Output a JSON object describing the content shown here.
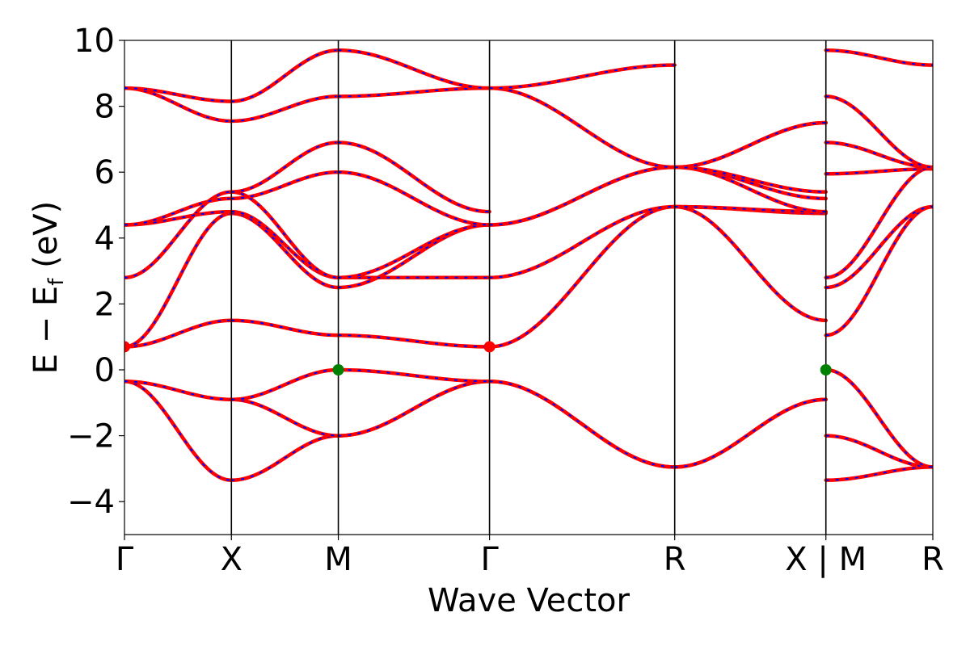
{
  "chart_data": {
    "type": "line",
    "xlabel": "Wave Vector",
    "ylabel_parts": [
      "E − E",
      "f",
      " (eV)"
    ],
    "ylim": [
      -5,
      10
    ],
    "yticks": [
      -4,
      -2,
      0,
      2,
      4,
      6,
      8,
      10
    ],
    "ytick_labels": [
      "−4",
      "−2",
      "0",
      "2",
      "4",
      "6",
      "8",
      "10"
    ],
    "x_range": [
      0,
      7.5
    ],
    "kpoints": [
      {
        "x": 0,
        "label": "Γ"
      },
      {
        "x": 1,
        "label": "X"
      },
      {
        "x": 2,
        "label": "M"
      },
      {
        "x": 3.414,
        "label": "Γ"
      },
      {
        "x": 5.146,
        "label": "R"
      },
      {
        "x": 6.56,
        "label": "X | M"
      },
      {
        "x": 7.56,
        "label": "R"
      }
    ],
    "colors": {
      "band_main": "#ff0000",
      "band_dash": "#0000ff",
      "cbm_marker": "#ff0000",
      "vbm_marker": "#008000"
    },
    "markers": [
      {
        "type": "cbm",
        "x": 0,
        "y": 0.7
      },
      {
        "type": "cbm",
        "x": 3.414,
        "y": 0.7
      },
      {
        "type": "vbm",
        "x": 2,
        "y": 0.0
      },
      {
        "type": "vbm",
        "x": 6.56,
        "y": 0.0
      }
    ],
    "segments": [
      {
        "from": "Γ",
        "to": "X",
        "bands": [
          [
            -0.35,
            -3.35
          ],
          [
            -0.35,
            -0.9
          ],
          [
            0.7,
            1.5
          ],
          [
            0.7,
            4.75
          ],
          [
            2.8,
            5.4
          ],
          [
            4.4,
            4.8
          ],
          [
            4.4,
            5.2
          ],
          [
            8.55,
            7.55
          ],
          [
            8.55,
            8.15
          ]
        ]
      },
      {
        "from": "X",
        "to": "M",
        "bands": [
          [
            -3.35,
            -2.0
          ],
          [
            -0.9,
            -2.0
          ],
          [
            -0.9,
            0.0
          ],
          [
            1.5,
            1.05
          ],
          [
            4.75,
            2.5
          ],
          [
            4.8,
            2.8
          ],
          [
            5.4,
            2.8
          ],
          [
            5.2,
            6.0
          ],
          [
            5.4,
            6.9
          ],
          [
            7.55,
            8.3
          ],
          [
            8.15,
            9.7
          ]
        ]
      },
      {
        "from": "M",
        "to": "Γ",
        "bands": [
          [
            -2.0,
            -0.35
          ],
          [
            -2.0,
            -0.35
          ],
          [
            0.0,
            -0.35
          ],
          [
            1.05,
            0.7
          ],
          [
            2.5,
            4.4
          ],
          [
            2.8,
            2.8
          ],
          [
            2.8,
            4.4
          ],
          [
            6.0,
            4.4
          ],
          [
            6.9,
            4.8
          ],
          [
            8.3,
            8.55
          ],
          [
            9.7,
            8.55
          ]
        ]
      },
      {
        "from": "Γ",
        "to": "R",
        "bands": [
          [
            -0.35,
            -2.95
          ],
          [
            -0.35,
            -2.95
          ],
          [
            0.7,
            4.95
          ],
          [
            2.8,
            4.95
          ],
          [
            4.4,
            6.15
          ],
          [
            4.4,
            6.15
          ],
          [
            8.55,
            6.15
          ],
          [
            8.55,
            9.25
          ]
        ]
      },
      {
        "from": "R",
        "to": "X",
        "bands": [
          [
            -2.95,
            -0.9
          ],
          [
            -2.95,
            -0.9
          ],
          [
            4.95,
            1.5
          ],
          [
            4.95,
            4.75
          ],
          [
            4.95,
            4.8
          ],
          [
            6.15,
            4.8
          ],
          [
            6.15,
            5.2
          ],
          [
            6.15,
            7.5
          ],
          [
            6.15,
            7.5
          ],
          [
            6.15,
            5.4
          ]
        ]
      },
      {
        "from": "M",
        "to": "R",
        "bands": [
          [
            -3.35,
            -2.95
          ],
          [
            -2.0,
            -2.95
          ],
          [
            0.0,
            -2.95
          ],
          [
            1.05,
            4.95
          ],
          [
            2.5,
            4.95
          ],
          [
            2.8,
            6.15
          ],
          [
            5.95,
            6.1
          ],
          [
            6.9,
            6.15
          ],
          [
            8.3,
            6.15
          ],
          [
            9.7,
            9.25
          ]
        ]
      }
    ]
  }
}
